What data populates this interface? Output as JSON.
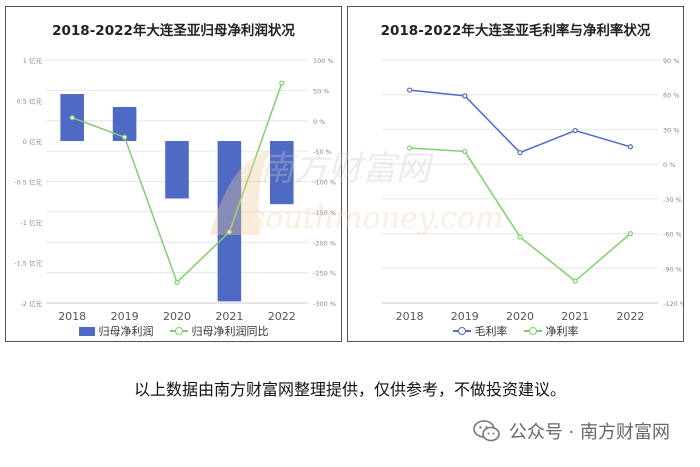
{
  "chart_data": [
    {
      "type": "bar",
      "title": "2018-2022年大连圣亚归母净利润状况",
      "categories": [
        "2018",
        "2019",
        "2020",
        "2021",
        "2022"
      ],
      "series": [
        {
          "name": "归母净利润",
          "axis": "left",
          "values": [
            0.58,
            0.42,
            -0.71,
            -1.98,
            -0.78
          ],
          "color": "#4e6ac4"
        },
        {
          "name": "归母净利润同比",
          "axis": "right",
          "type": "line",
          "values": [
            5,
            -27,
            -266,
            -183,
            62
          ],
          "color": "#7fcf6e"
        }
      ],
      "left_axis": {
        "ylim": [
          -2,
          1
        ],
        "ticks": [
          1,
          0.5,
          0,
          -0.5,
          -1,
          -1.5,
          -2
        ],
        "tick_labels": [
          "1 亿元",
          "0.5 亿元",
          "0 亿元",
          "-0.5 亿元",
          "-1 亿元",
          "-1.5 亿元",
          "-2 亿元"
        ]
      },
      "right_axis": {
        "ylim": [
          -300,
          100
        ],
        "ticks": [
          100,
          50,
          0,
          -50,
          -100,
          -150,
          -200,
          -250,
          -300
        ],
        "tick_labels": [
          "100 %",
          "50 %",
          "0 %",
          "-50 %",
          "-100 %",
          "-150 %",
          "-200 %",
          "-250 %",
          "-300 %"
        ]
      },
      "grid": true,
      "legend_position": "bottom"
    },
    {
      "type": "line",
      "title": "2018-2022年大连圣亚毛利率与净利率状况",
      "categories": [
        "2018",
        "2019",
        "2020",
        "2021",
        "2022"
      ],
      "series": [
        {
          "name": "毛利率",
          "values": [
            64,
            59,
            10,
            29,
            15
          ],
          "color": "#4e6ac4"
        },
        {
          "name": "净利率",
          "values": [
            14,
            11,
            -63,
            -101,
            -60
          ],
          "color": "#7fcf6e"
        }
      ],
      "right_axis": {
        "ylim": [
          -120,
          90
        ],
        "ticks": [
          90,
          60,
          30,
          0,
          -30,
          -60,
          -90,
          -120
        ],
        "tick_labels": [
          "90 %",
          "60 %",
          "30 %",
          "0 %",
          "-30 %",
          "-60 %",
          "-90 %",
          "-120 %"
        ]
      },
      "grid": true,
      "legend_position": "bottom"
    }
  ],
  "note": "以上数据由南方财富网整理提供，仅供参考，不做投资建议。",
  "footer": {
    "text": "公众号 · 南方财富网",
    "icon": "wechat-icon"
  },
  "watermark": {
    "cn": "南方财富网",
    "en": "southmoney.com"
  },
  "colors": {
    "bar": "#4e6ac4",
    "line_green": "#7fcf6e",
    "line_blue": "#4e6ac4",
    "grid": "#e6e6e6"
  }
}
